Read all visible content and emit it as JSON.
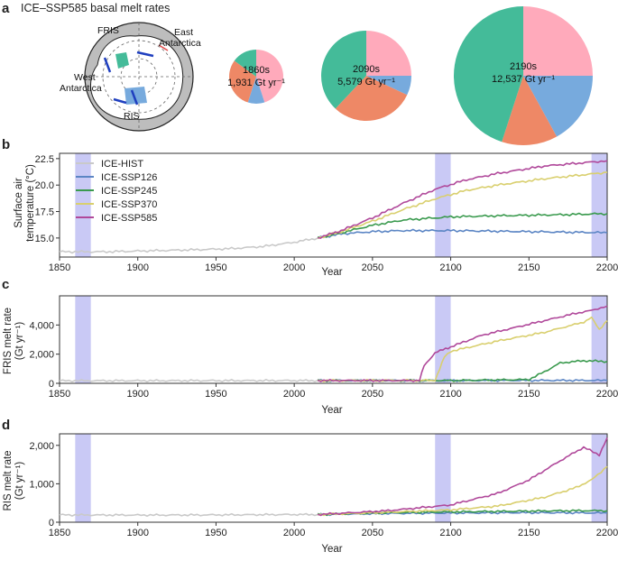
{
  "panel_a": {
    "letter": "a",
    "title": "ICE–SSP585 basal melt rates",
    "map_labels": {
      "fris": "FRIS",
      "east": "East",
      "east2": "Antarctica",
      "west": "West",
      "west2": "Antarctica",
      "ris": "RIS"
    },
    "pie_colors": {
      "east": "#ffaabb",
      "ris": "#77aadd",
      "west": "#ee8866",
      "fris": "#44bb99"
    }
  },
  "panel_b": {
    "letter": "b"
  },
  "panel_c": {
    "letter": "c"
  },
  "panel_d": {
    "letter": "d"
  },
  "colors": {
    "ICE-HIST": "#c9c9c9",
    "ICE-SSP126": "#5b85c4",
    "ICE-SSP245": "#3a9a4e",
    "ICE-SSP370": "#d9cf6e",
    "ICE-SSP585": "#b0489a",
    "highlight": "#c9c9f5"
  },
  "chart_data": [
    {
      "type": "pie",
      "label_period": "1860s",
      "label_total": "1,931 Gt yr⁻¹",
      "slices": [
        {
          "name": "East Antarctica",
          "value": 0.45
        },
        {
          "name": "RIS",
          "value": 0.1
        },
        {
          "name": "West Antarctica",
          "value": 0.3
        },
        {
          "name": "FRIS",
          "value": 0.15
        }
      ]
    },
    {
      "type": "pie",
      "label_period": "2090s",
      "label_total": "5,579 Gt yr⁻¹",
      "slices": [
        {
          "name": "East Antarctica",
          "value": 0.25
        },
        {
          "name": "RIS",
          "value": 0.07
        },
        {
          "name": "West Antarctica",
          "value": 0.3
        },
        {
          "name": "FRIS",
          "value": 0.38
        }
      ]
    },
    {
      "type": "pie",
      "label_period": "2190s",
      "label_total": "12,537 Gt yr⁻¹",
      "slices": [
        {
          "name": "East Antarctica",
          "value": 0.25
        },
        {
          "name": "RIS",
          "value": 0.17
        },
        {
          "name": "West Antarctica",
          "value": 0.13
        },
        {
          "name": "FRIS",
          "value": 0.45
        }
      ]
    },
    {
      "type": "line",
      "panel": "b",
      "ylabel_line1": "Surface air",
      "ylabel_line2": "temperature (°C)",
      "xlabel": "Year",
      "xlim": [
        1850,
        2200
      ],
      "ylim": [
        13.2,
        23.0
      ],
      "xticks": [
        1850,
        1900,
        1950,
        2000,
        2050,
        2100,
        2150,
        2200
      ],
      "xtick_labels": [
        "1850",
        "1900",
        "1950",
        "2000",
        "2050",
        "2100",
        "2150",
        "2200"
      ],
      "yticks": [
        15.0,
        17.5,
        20.0,
        22.5
      ],
      "ytick_labels": [
        "15.0",
        "17.5",
        "20.0",
        "22.5"
      ],
      "highlight_spans": [
        [
          1860,
          1870
        ],
        [
          2090,
          2100
        ],
        [
          2190,
          2200
        ]
      ],
      "legend": [
        "ICE-HIST",
        "ICE-SSP126",
        "ICE-SSP245",
        "ICE-SSP370",
        "ICE-SSP585"
      ],
      "series": [
        {
          "name": "ICE-HIST",
          "x": [
            1850,
            1880,
            1910,
            1940,
            1960,
            1980,
            2000,
            2015
          ],
          "y": [
            13.7,
            13.7,
            13.8,
            13.9,
            14.0,
            14.2,
            14.6,
            15.0
          ]
        },
        {
          "name": "ICE-SSP126",
          "x": [
            2015,
            2030,
            2050,
            2070,
            2100,
            2150,
            2200
          ],
          "y": [
            15.0,
            15.4,
            15.6,
            15.7,
            15.7,
            15.6,
            15.5
          ]
        },
        {
          "name": "ICE-SSP245",
          "x": [
            2015,
            2030,
            2050,
            2070,
            2100,
            2130,
            2170,
            2200
          ],
          "y": [
            15.0,
            15.5,
            16.2,
            16.7,
            17.0,
            17.1,
            17.2,
            17.3
          ]
        },
        {
          "name": "ICE-SSP370",
          "x": [
            2015,
            2030,
            2050,
            2070,
            2090,
            2110,
            2130,
            2160,
            2200
          ],
          "y": [
            15.0,
            15.6,
            16.6,
            17.7,
            18.7,
            19.5,
            20.0,
            20.6,
            21.2
          ]
        },
        {
          "name": "ICE-SSP585",
          "x": [
            2015,
            2030,
            2050,
            2070,
            2090,
            2110,
            2130,
            2160,
            2200
          ],
          "y": [
            15.0,
            15.7,
            16.9,
            18.3,
            19.6,
            20.5,
            21.1,
            21.8,
            22.3
          ]
        }
      ]
    },
    {
      "type": "line",
      "panel": "c",
      "ylabel_line1": "FRIS melt rate",
      "ylabel_line2": "(Gt yr⁻¹)",
      "xlabel": "Year",
      "xlim": [
        1850,
        2200
      ],
      "ylim": [
        0,
        6000
      ],
      "xticks": [
        1850,
        1900,
        1950,
        2000,
        2050,
        2100,
        2150,
        2200
      ],
      "xtick_labels": [
        "1850",
        "1900",
        "1950",
        "2000",
        "2050",
        "2100",
        "2150",
        "2200"
      ],
      "yticks": [
        0,
        2000,
        4000
      ],
      "ytick_labels": [
        "0",
        "2,000",
        "4,000"
      ],
      "highlight_spans": [
        [
          1860,
          1870
        ],
        [
          2090,
          2100
        ],
        [
          2190,
          2200
        ]
      ],
      "series": [
        {
          "name": "ICE-HIST",
          "x": [
            1850,
            1900,
            1950,
            2000,
            2015
          ],
          "y": [
            180,
            180,
            185,
            190,
            190
          ]
        },
        {
          "name": "ICE-SSP126",
          "x": [
            2015,
            2100,
            2150,
            2200
          ],
          "y": [
            190,
            190,
            200,
            200
          ]
        },
        {
          "name": "ICE-SSP245",
          "x": [
            2015,
            2100,
            2150,
            2160,
            2170,
            2185,
            2200
          ],
          "y": [
            190,
            190,
            260,
            800,
            1400,
            1550,
            1500
          ]
        },
        {
          "name": "ICE-SSP370",
          "x": [
            2015,
            2080,
            2090,
            2093,
            2096,
            2100,
            2130,
            2160,
            2185,
            2190,
            2195,
            2200
          ],
          "y": [
            190,
            200,
            200,
            1000,
            1800,
            2200,
            2900,
            3500,
            4200,
            4500,
            3700,
            4300
          ]
        },
        {
          "name": "ICE-SSP585",
          "x": [
            2015,
            2080,
            2083,
            2090,
            2095,
            2100,
            2120,
            2140,
            2160,
            2180,
            2190,
            2200
          ],
          "y": [
            190,
            190,
            1200,
            2100,
            2300,
            2500,
            3300,
            3800,
            4300,
            4800,
            5000,
            5300
          ]
        }
      ]
    },
    {
      "type": "line",
      "panel": "d",
      "ylabel_line1": "RIS melt rate",
      "ylabel_line2": "(Gt yr⁻¹)",
      "xlabel": "Year",
      "xlim": [
        1850,
        2200
      ],
      "ylim": [
        0,
        2300
      ],
      "xticks": [
        1850,
        1900,
        1950,
        2000,
        2050,
        2100,
        2150,
        2200
      ],
      "xtick_labels": [
        "1850",
        "1900",
        "1950",
        "2000",
        "2050",
        "2100",
        "2150",
        "2200"
      ],
      "yticks": [
        0,
        1000,
        2000
      ],
      "ytick_labels": [
        "0",
        "1,000",
        "2,000"
      ],
      "highlight_spans": [
        [
          1860,
          1870
        ],
        [
          2090,
          2100
        ],
        [
          2190,
          2200
        ]
      ],
      "series": [
        {
          "name": "ICE-HIST",
          "x": [
            1850,
            1900,
            1950,
            2000,
            2015
          ],
          "y": [
            190,
            185,
            190,
            200,
            200
          ]
        },
        {
          "name": "ICE-SSP126",
          "x": [
            2015,
            2060,
            2100,
            2150,
            2200
          ],
          "y": [
            200,
            230,
            240,
            250,
            240
          ]
        },
        {
          "name": "ICE-SSP245",
          "x": [
            2015,
            2060,
            2100,
            2150,
            2180,
            2200
          ],
          "y": [
            200,
            250,
            270,
            290,
            300,
            300
          ]
        },
        {
          "name": "ICE-SSP370",
          "x": [
            2015,
            2060,
            2100,
            2130,
            2160,
            2180,
            2190,
            2200
          ],
          "y": [
            200,
            260,
            320,
            420,
            650,
            900,
            1100,
            1450
          ]
        },
        {
          "name": "ICE-SSP585",
          "x": [
            2015,
            2060,
            2100,
            2130,
            2150,
            2170,
            2185,
            2195,
            2200
          ],
          "y": [
            200,
            300,
            450,
            750,
            1100,
            1600,
            1950,
            1750,
            2200
          ]
        }
      ]
    }
  ]
}
